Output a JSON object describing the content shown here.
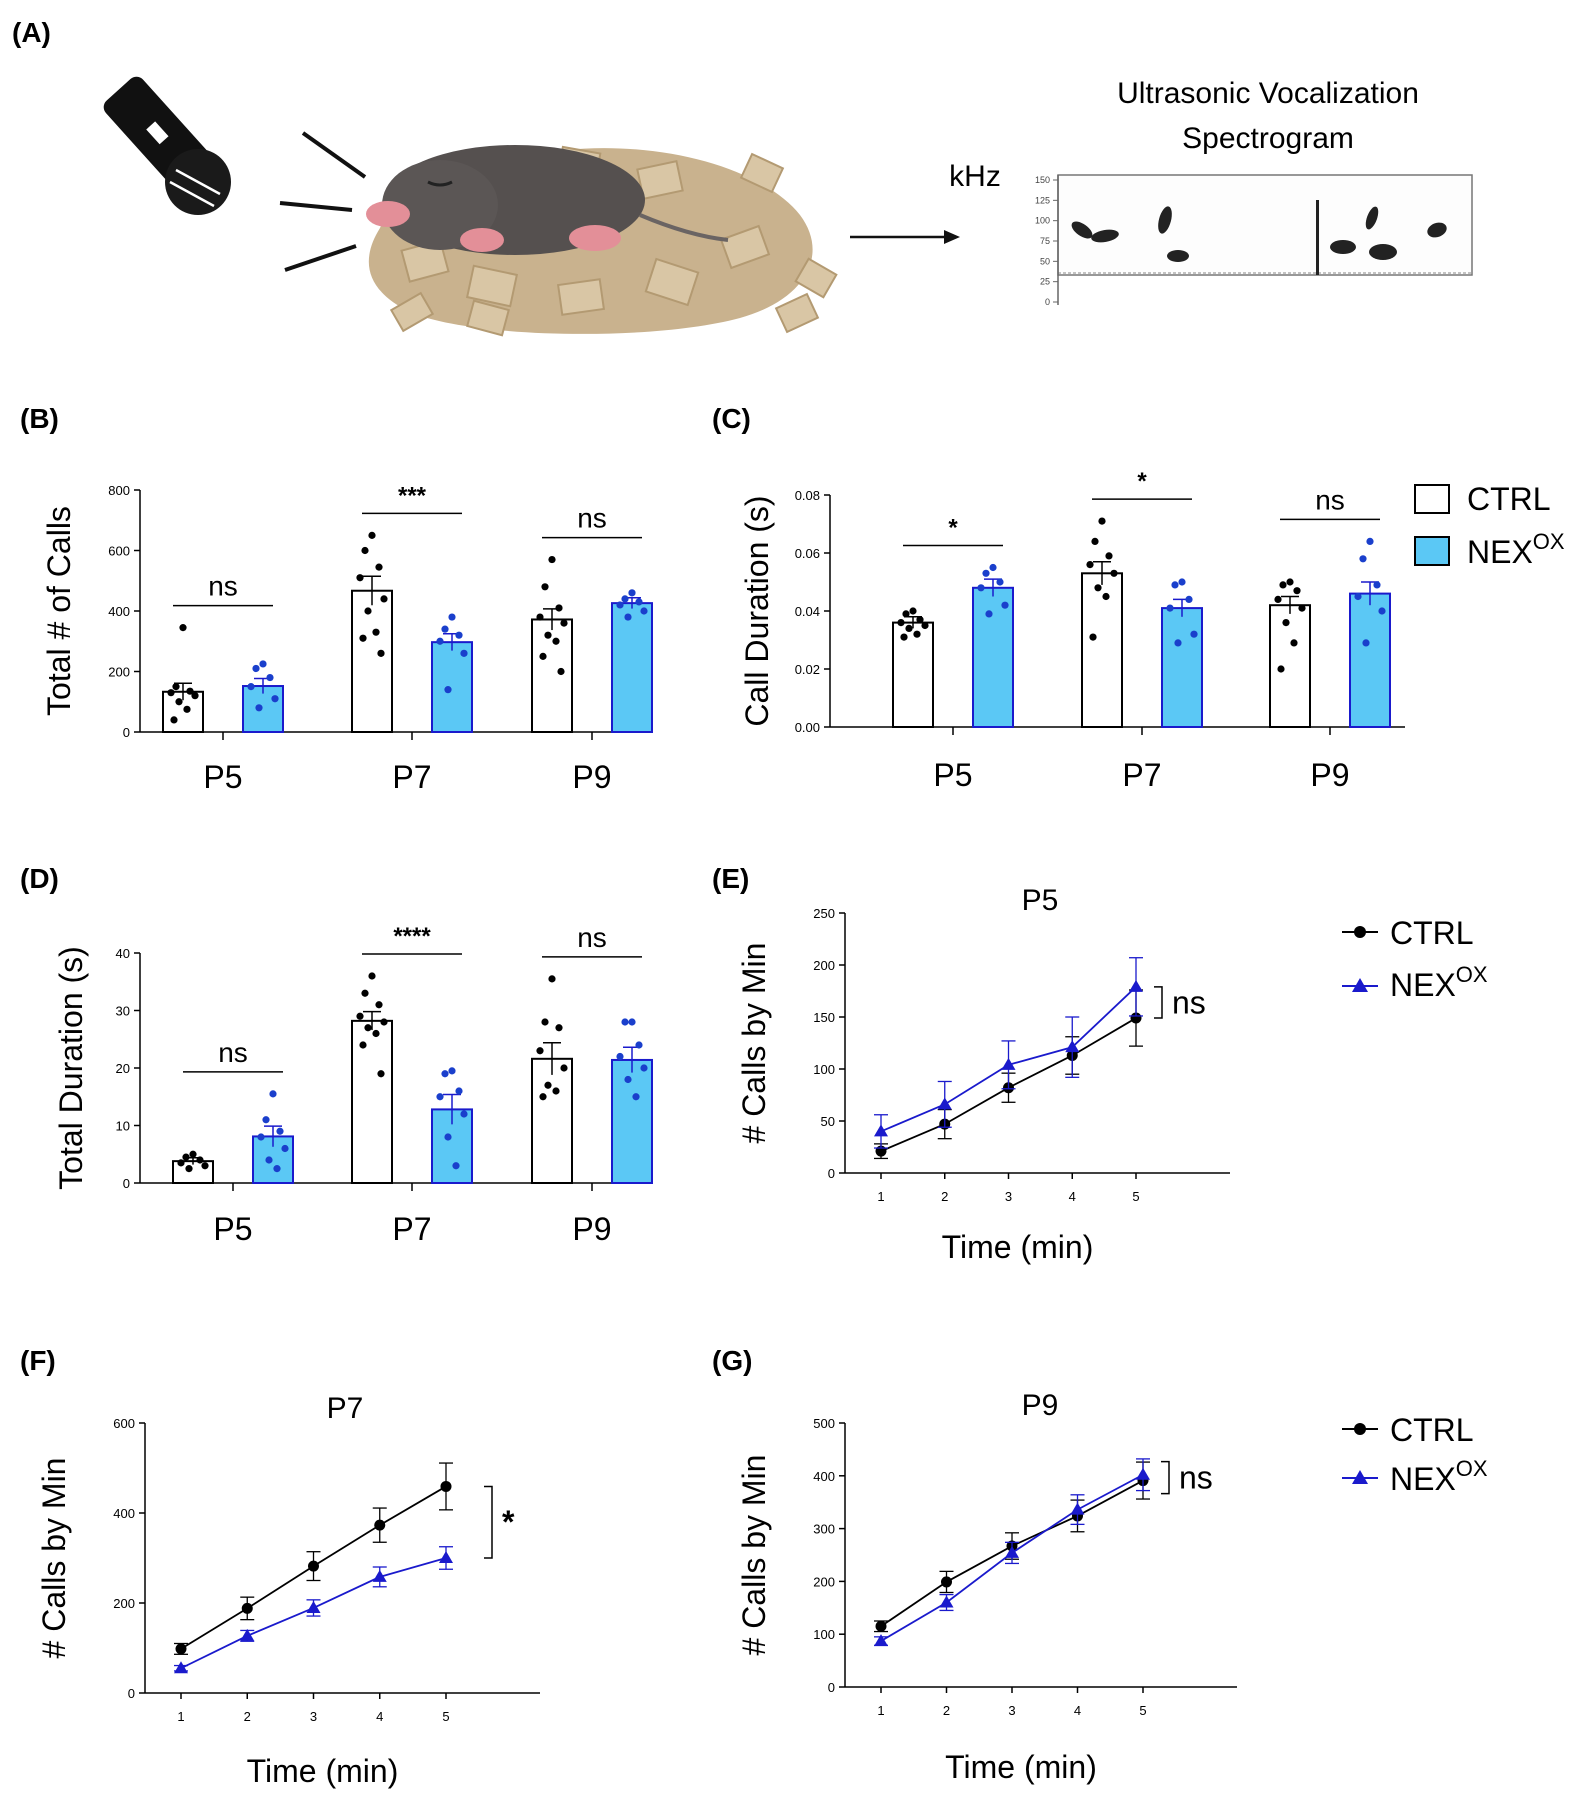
{
  "figure": {
    "panel_a": {
      "letter": "(A)",
      "spectrogram_title_line1": "Ultrasonic Vocalization",
      "spectrogram_title_line2": "Spectrogram",
      "khz_label": "kHz",
      "spectrogram_ticks": [
        "150",
        "125",
        "100",
        "75",
        "50",
        "25",
        "0"
      ]
    },
    "colors": {
      "ctrl": "#000000",
      "nex": "#1a1acc",
      "nex_bar": "#5bc8f5",
      "nex_dot": "#1a3fcc"
    },
    "bar_legend": {
      "ctrl": "CTRL",
      "nex_base": "NEX",
      "nex_sup": "OX"
    },
    "line_legend": {
      "ctrl": "CTRL",
      "nex_base": "NEX",
      "nex_sup": "OX"
    }
  },
  "chart_data": [
    {
      "id": "B",
      "letter": "(B)",
      "type": "bar",
      "ylabel": "Total # of Calls",
      "ylim": [
        0,
        800
      ],
      "yticks": [
        "0",
        "200",
        "400",
        "600",
        "800"
      ],
      "categories": [
        "P5",
        "P7",
        "P9"
      ],
      "series": [
        {
          "name": "CTRL",
          "values": [
            133,
            467,
            372
          ],
          "sem": [
            28,
            48,
            35
          ],
          "points": [
            [
              345,
              150,
              135,
              130,
              120,
              100,
              75,
              40
            ],
            [
              650,
              600,
              545,
              510,
              440,
              400,
              330,
              310,
              260
            ],
            [
              570,
              480,
              410,
              380,
              360,
              320,
              300,
              250,
              200
            ]
          ]
        },
        {
          "name": "NEX",
          "values": [
            152,
            297,
            426
          ],
          "sem": [
            25,
            28,
            18
          ],
          "points": [
            [
              225,
              210,
              180,
              150,
              110,
              80
            ],
            [
              380,
              340,
              320,
              300,
              260,
              140
            ],
            [
              460,
              440,
              430,
              420,
              400,
              380
            ]
          ]
        }
      ],
      "significance": [
        "ns",
        "***",
        "ns"
      ]
    },
    {
      "id": "C",
      "letter": "(C)",
      "type": "bar",
      "ylabel": "Call Duration (s)",
      "ylim": [
        0,
        0.08
      ],
      "yticks": [
        "0.00",
        "0.02",
        "0.04",
        "0.06",
        "0.08"
      ],
      "categories": [
        "P5",
        "P7",
        "P9"
      ],
      "series": [
        {
          "name": "CTRL",
          "values": [
            0.036,
            0.053,
            0.042
          ],
          "sem": [
            0.002,
            0.004,
            0.003
          ],
          "points": [
            [
              0.04,
              0.039,
              0.037,
              0.036,
              0.035,
              0.034,
              0.032,
              0.031
            ],
            [
              0.071,
              0.064,
              0.059,
              0.056,
              0.053,
              0.048,
              0.045,
              0.031
            ],
            [
              0.05,
              0.049,
              0.047,
              0.044,
              0.041,
              0.036,
              0.029,
              0.02
            ]
          ]
        },
        {
          "name": "NEX",
          "values": [
            0.048,
            0.041,
            0.046
          ],
          "sem": [
            0.003,
            0.003,
            0.004
          ],
          "points": [
            [
              0.055,
              0.053,
              0.05,
              0.048,
              0.042,
              0.039
            ],
            [
              0.05,
              0.049,
              0.044,
              0.041,
              0.032,
              0.029
            ],
            [
              0.064,
              0.058,
              0.049,
              0.045,
              0.04,
              0.029
            ]
          ]
        }
      ],
      "significance": [
        "*",
        "*",
        "ns"
      ]
    },
    {
      "id": "D",
      "letter": "(D)",
      "type": "bar",
      "ylabel": "Total Duration (s)",
      "ylim": [
        0,
        40
      ],
      "yticks": [
        "0",
        "10",
        "20",
        "30",
        "40"
      ],
      "categories": [
        "P5",
        "P7",
        "P9"
      ],
      "series": [
        {
          "name": "CTRL",
          "values": [
            3.8,
            28.2,
            21.6
          ],
          "sem": [
            0.6,
            1.6,
            2.8
          ],
          "points": [
            [
              5,
              4.5,
              4,
              3.5,
              3,
              2.5
            ],
            [
              36,
              33,
              31,
              29,
              28,
              27,
              26,
              24,
              19
            ],
            [
              35.5,
              28,
              27,
              23,
              20,
              17,
              16,
              15
            ]
          ]
        },
        {
          "name": "NEX",
          "values": [
            8.1,
            12.8,
            21.4
          ],
          "sem": [
            1.8,
            2.6,
            2.2
          ],
          "points": [
            [
              15.5,
              11,
              9,
              8,
              6,
              4,
              2.5
            ],
            [
              19.5,
              19,
              16,
              15,
              12,
              8,
              3
            ],
            [
              28,
              28,
              24,
              22,
              20,
              18,
              15
            ]
          ]
        }
      ],
      "significance": [
        "ns",
        "****",
        "ns"
      ]
    },
    {
      "id": "E",
      "letter": "(E)",
      "type": "line",
      "title": "P5",
      "xlabel": "Time (min)",
      "ylabel": "# Calls by Min",
      "x": [
        1,
        2,
        3,
        4,
        5
      ],
      "xticks": [
        "1",
        "2",
        "3",
        "4",
        "5"
      ],
      "ylim": [
        0,
        250
      ],
      "yticks": [
        "0",
        "50",
        "100",
        "150",
        "200",
        "250"
      ],
      "series": [
        {
          "name": "CTRL",
          "values": [
            21,
            47,
            82,
            113,
            149
          ],
          "err": [
            7,
            14,
            14,
            18,
            27
          ]
        },
        {
          "name": "NEX",
          "values": [
            40,
            66,
            104,
            121,
            179
          ],
          "err": [
            16,
            22,
            23,
            29,
            28
          ]
        }
      ],
      "significance": "ns"
    },
    {
      "id": "F",
      "letter": "(F)",
      "type": "line",
      "title": "P7",
      "xlabel": "Time (min)",
      "ylabel": "# Calls by Min",
      "x": [
        1,
        2,
        3,
        4,
        5
      ],
      "xticks": [
        "1",
        "2",
        "3",
        "4",
        "5"
      ],
      "ylim": [
        0,
        600
      ],
      "yticks": [
        "0",
        "200",
        "400",
        "600"
      ],
      "series": [
        {
          "name": "CTRL",
          "values": [
            98,
            188,
            282,
            373,
            459
          ],
          "err": [
            12,
            25,
            32,
            38,
            52
          ]
        },
        {
          "name": "NEX",
          "values": [
            55,
            127,
            189,
            258,
            300
          ],
          "err": [
            6,
            12,
            18,
            22,
            25
          ]
        }
      ],
      "significance": "*"
    },
    {
      "id": "G",
      "letter": "(G)",
      "type": "line",
      "title": "P9",
      "xlabel": "Time (min)",
      "ylabel": "# Calls by Min",
      "x": [
        1,
        2,
        3,
        4,
        5
      ],
      "xticks": [
        "1",
        "2",
        "3",
        "4",
        "5"
      ],
      "ylim": [
        0,
        500
      ],
      "yticks": [
        "0",
        "100",
        "200",
        "300",
        "400",
        "500"
      ],
      "series": [
        {
          "name": "CTRL",
          "values": [
            115,
            199,
            267,
            324,
            391
          ],
          "err": [
            10,
            20,
            25,
            30,
            35
          ]
        },
        {
          "name": "NEX",
          "values": [
            87,
            160,
            254,
            336,
            402
          ],
          "err": [
            8,
            15,
            20,
            28,
            30
          ]
        }
      ],
      "significance": "ns"
    }
  ]
}
